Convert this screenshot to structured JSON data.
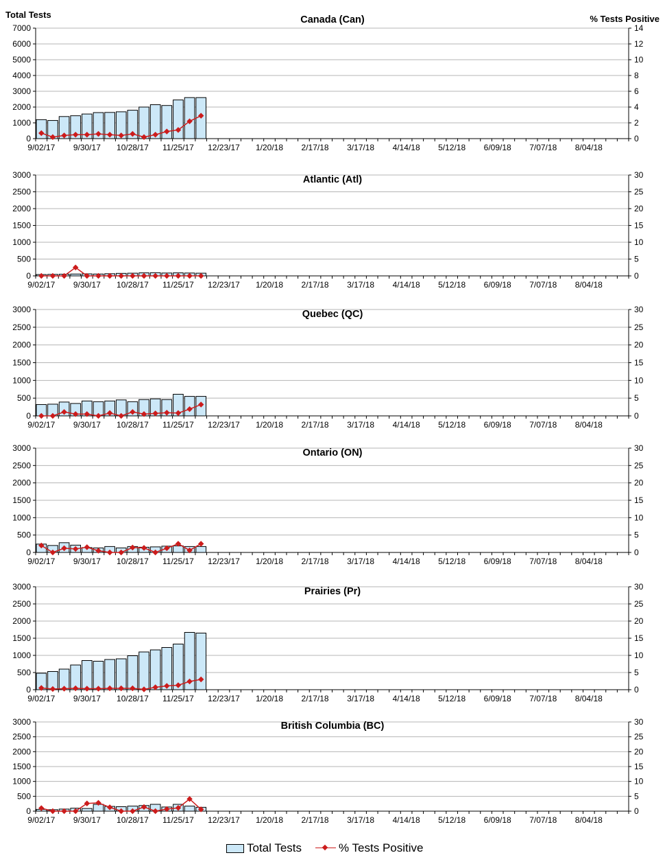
{
  "axis_titles": {
    "left": "Total Tests",
    "right": "% Tests Positive"
  },
  "legend": {
    "bars_label": "Total Tests",
    "line_label": "% Tests Positive"
  },
  "colors": {
    "bar_fill": "#cce8f8",
    "bar_stroke": "#000000",
    "line": "#cc1c1c",
    "grid": "#b4b4b4"
  },
  "chart_data": [
    {
      "type": "bar",
      "title": "Canada (Can)",
      "x": [
        "9/02/17",
        "9/09/17",
        "9/16/17",
        "9/23/17",
        "9/30/17",
        "10/07/17",
        "10/14/17",
        "10/21/17",
        "10/28/17",
        "11/04/17",
        "11/11/17",
        "11/18/17",
        "11/25/17",
        "12/02/17",
        "12/09/17"
      ],
      "tick_labels": [
        "9/02/17",
        "9/30/17",
        "10/28/17",
        "11/25/17",
        "12/23/17",
        "1/20/18",
        "2/17/18",
        "3/17/18",
        "4/14/18",
        "5/12/18",
        "6/09/18",
        "7/07/18",
        "8/04/18"
      ],
      "ylim": [
        0,
        7000
      ],
      "y_ticks": [
        0,
        1000,
        2000,
        3000,
        4000,
        5000,
        6000,
        7000
      ],
      "y2lim": [
        0,
        14
      ],
      "y2_ticks": [
        0,
        2,
        4,
        6,
        8,
        10,
        12,
        14
      ],
      "grid": true,
      "series": [
        {
          "name": "Total Tests",
          "type": "bar",
          "values": [
            1200,
            1150,
            1400,
            1450,
            1560,
            1650,
            1660,
            1700,
            1800,
            2000,
            2150,
            2100,
            2450,
            2600,
            2600
          ]
        },
        {
          "name": "% Tests Positive",
          "type": "line",
          "axis": "right",
          "values": [
            0.7,
            0.2,
            0.4,
            0.5,
            0.5,
            0.6,
            0.5,
            0.4,
            0.6,
            0.2,
            0.5,
            0.9,
            1.1,
            2.2,
            2.9
          ]
        }
      ]
    },
    {
      "type": "bar",
      "title": "Atlantic (Atl)",
      "x": [
        "9/02/17",
        "9/09/17",
        "9/16/17",
        "9/23/17",
        "9/30/17",
        "10/07/17",
        "10/14/17",
        "10/21/17",
        "10/28/17",
        "11/04/17",
        "11/11/17",
        "11/18/17",
        "11/25/17",
        "12/02/17",
        "12/09/17"
      ],
      "tick_labels": [
        "9/02/17",
        "9/30/17",
        "10/28/17",
        "11/25/17",
        "12/23/17",
        "1/20/18",
        "2/17/18",
        "3/17/18",
        "4/14/18",
        "5/12/18",
        "6/09/18",
        "7/07/18",
        "8/04/18"
      ],
      "ylim": [
        0,
        3000
      ],
      "y_ticks": [
        0,
        500,
        1000,
        1500,
        2000,
        2500,
        3000
      ],
      "y2lim": [
        0,
        30
      ],
      "y2_ticks": [
        0,
        5,
        10,
        15,
        20,
        25,
        30
      ],
      "grid": true,
      "series": [
        {
          "name": "Total Tests",
          "type": "bar",
          "values": [
            40,
            45,
            50,
            55,
            60,
            55,
            65,
            75,
            80,
            90,
            95,
            85,
            90,
            85,
            80
          ]
        },
        {
          "name": "% Tests Positive",
          "type": "line",
          "axis": "right",
          "values": [
            0,
            0,
            0,
            2.5,
            0,
            0,
            0,
            0,
            0,
            0,
            0,
            0,
            0,
            0,
            0
          ]
        }
      ]
    },
    {
      "type": "bar",
      "title": "Quebec (QC)",
      "x": [
        "9/02/17",
        "9/09/17",
        "9/16/17",
        "9/23/17",
        "9/30/17",
        "10/07/17",
        "10/14/17",
        "10/21/17",
        "10/28/17",
        "11/04/17",
        "11/11/17",
        "11/18/17",
        "11/25/17",
        "12/02/17",
        "12/09/17"
      ],
      "tick_labels": [
        "9/02/17",
        "9/30/17",
        "10/28/17",
        "11/25/17",
        "12/23/17",
        "1/20/18",
        "2/17/18",
        "3/17/18",
        "4/14/18",
        "5/12/18",
        "6/09/18",
        "7/07/18",
        "8/04/18"
      ],
      "ylim": [
        0,
        3000
      ],
      "y_ticks": [
        0,
        500,
        1000,
        1500,
        2000,
        2500,
        3000
      ],
      "y2lim": [
        0,
        30
      ],
      "y2_ticks": [
        0,
        5,
        10,
        15,
        20,
        25,
        30
      ],
      "grid": true,
      "series": [
        {
          "name": "Total Tests",
          "type": "bar",
          "values": [
            320,
            330,
            390,
            350,
            420,
            400,
            420,
            450,
            400,
            460,
            480,
            460,
            610,
            550,
            550
          ]
        },
        {
          "name": "% Tests Positive",
          "type": "line",
          "axis": "right",
          "values": [
            0,
            0,
            1.1,
            0.5,
            0.5,
            0,
            0.8,
            0,
            1.1,
            0.5,
            0.7,
            0.9,
            0.8,
            1.9,
            3.2
          ]
        }
      ]
    },
    {
      "type": "bar",
      "title": "Ontario (ON)",
      "x": [
        "9/02/17",
        "9/09/17",
        "9/16/17",
        "9/23/17",
        "9/30/17",
        "10/07/17",
        "10/14/17",
        "10/21/17",
        "10/28/17",
        "11/04/17",
        "11/11/17",
        "11/18/17",
        "11/25/17",
        "12/02/17",
        "12/09/17"
      ],
      "tick_labels": [
        "9/02/17",
        "9/30/17",
        "10/28/17",
        "11/25/17",
        "12/23/17",
        "1/20/18",
        "2/17/18",
        "3/17/18",
        "4/14/18",
        "5/12/18",
        "6/09/18",
        "7/07/18",
        "8/04/18"
      ],
      "ylim": [
        0,
        3000
      ],
      "y_ticks": [
        0,
        500,
        1000,
        1500,
        2000,
        2500,
        3000
      ],
      "y2lim": [
        0,
        30
      ],
      "y2_ticks": [
        0,
        5,
        10,
        15,
        20,
        25,
        30
      ],
      "grid": true,
      "series": [
        {
          "name": "Total Tests",
          "type": "bar",
          "values": [
            240,
            200,
            280,
            210,
            140,
            130,
            170,
            130,
            170,
            150,
            160,
            180,
            190,
            170,
            170
          ]
        },
        {
          "name": "% Tests Positive",
          "type": "line",
          "axis": "right",
          "values": [
            2,
            0,
            1.2,
            1,
            1.5,
            0.5,
            0,
            0,
            1.4,
            1.3,
            0,
            1.2,
            2.5,
            0.6,
            2.5
          ]
        }
      ]
    },
    {
      "type": "bar",
      "title": "Prairies (Pr)",
      "x": [
        "9/02/17",
        "9/09/17",
        "9/16/17",
        "9/23/17",
        "9/30/17",
        "10/07/17",
        "10/14/17",
        "10/21/17",
        "10/28/17",
        "11/04/17",
        "11/11/17",
        "11/18/17",
        "11/25/17",
        "12/02/17",
        "12/09/17"
      ],
      "tick_labels": [
        "9/02/17",
        "9/30/17",
        "10/28/17",
        "11/25/17",
        "12/23/17",
        "1/20/18",
        "2/17/18",
        "3/17/18",
        "4/14/18",
        "5/12/18",
        "6/09/18",
        "7/07/18",
        "8/04/18"
      ],
      "ylim": [
        0,
        3000
      ],
      "y_ticks": [
        0,
        500,
        1000,
        1500,
        2000,
        2500,
        3000
      ],
      "y2lim": [
        0,
        30
      ],
      "y2_ticks": [
        0,
        5,
        10,
        15,
        20,
        25,
        30
      ],
      "grid": true,
      "series": [
        {
          "name": "Total Tests",
          "type": "bar",
          "values": [
            480,
            530,
            600,
            720,
            850,
            830,
            880,
            900,
            990,
            1100,
            1160,
            1230,
            1330,
            1670,
            1650
          ]
        },
        {
          "name": "% Tests Positive",
          "type": "line",
          "axis": "right",
          "values": [
            0.5,
            0.2,
            0.3,
            0.4,
            0.3,
            0.3,
            0.4,
            0.4,
            0.4,
            0.1,
            0.7,
            1.1,
            1.3,
            2.4,
            3.0
          ]
        }
      ]
    },
    {
      "type": "bar",
      "title": "British Columbia (BC)",
      "x": [
        "9/02/17",
        "9/09/17",
        "9/16/17",
        "9/23/17",
        "9/30/17",
        "10/07/17",
        "10/14/17",
        "10/21/17",
        "10/28/17",
        "11/04/17",
        "11/11/17",
        "11/18/17",
        "11/25/17",
        "12/02/17",
        "12/09/17"
      ],
      "tick_labels": [
        "9/02/17",
        "9/30/17",
        "10/28/17",
        "11/25/17",
        "12/23/17",
        "1/20/18",
        "2/17/18",
        "3/17/18",
        "4/14/18",
        "5/12/18",
        "6/09/18",
        "7/07/18",
        "8/04/18"
      ],
      "ylim": [
        0,
        3000
      ],
      "y_ticks": [
        0,
        500,
        1000,
        1500,
        2000,
        2500,
        3000
      ],
      "y2lim": [
        0,
        30
      ],
      "y2_ticks": [
        0,
        5,
        10,
        15,
        20,
        25,
        30
      ],
      "grid": true,
      "series": [
        {
          "name": "Total Tests",
          "type": "bar",
          "values": [
            60,
            50,
            70,
            100,
            90,
            230,
            160,
            150,
            170,
            190,
            230,
            140,
            230,
            170,
            130
          ]
        },
        {
          "name": "% Tests Positive",
          "type": "line",
          "axis": "right",
          "values": [
            1,
            0,
            0,
            0,
            2.6,
            2.8,
            1.3,
            0,
            0,
            1.4,
            0,
            0.7,
            1.1,
            4.1,
            0.6
          ]
        }
      ]
    }
  ]
}
